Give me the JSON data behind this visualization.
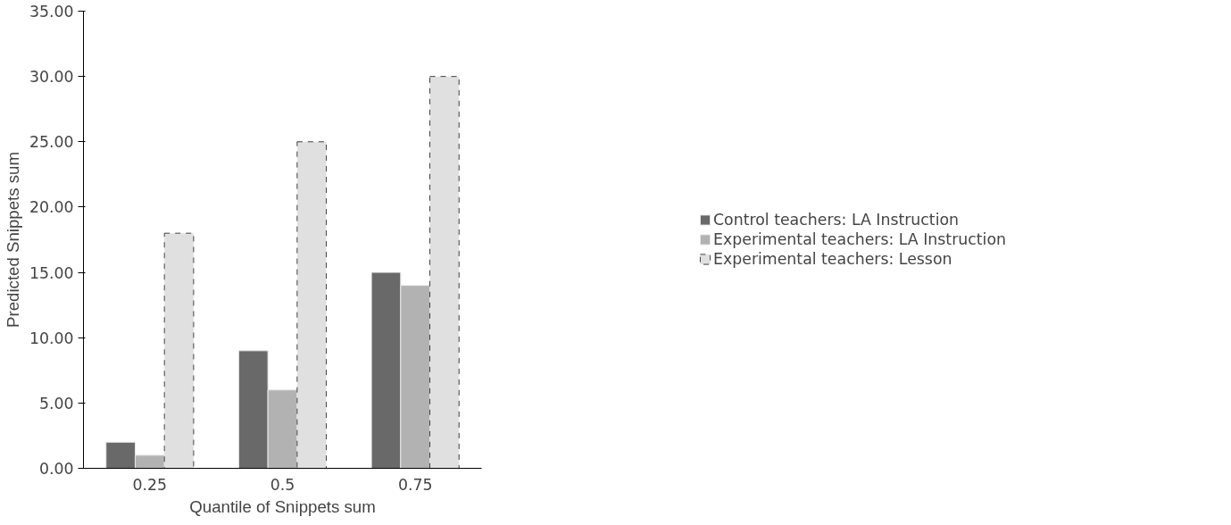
{
  "chart_data": {
    "type": "bar",
    "xlabel": "Quantile of Snippets sum",
    "ylabel": "Predicted Snippets sum",
    "categories": [
      "0.25",
      "0.5",
      "0.75"
    ],
    "series": [
      {
        "name": "Control teachers: LA Instruction",
        "color": "#696969",
        "values": [
          2,
          9,
          15
        ]
      },
      {
        "name": "Experimental teachers: LA Instruction",
        "color": "#b2b2b2",
        "values": [
          1,
          6,
          14
        ]
      },
      {
        "name": "Experimental teachers: Lesson",
        "color": "#e0e0e0",
        "values": [
          18,
          25,
          30
        ],
        "line_style": "dashed"
      }
    ],
    "ylim": [
      0,
      35
    ],
    "yticks": [
      {
        "value": 0,
        "label": "0.00"
      },
      {
        "value": 5,
        "label": "5.00"
      },
      {
        "value": 10,
        "label": "10.00"
      },
      {
        "value": 15,
        "label": "15.00"
      },
      {
        "value": 20,
        "label": "20.00"
      },
      {
        "value": 25,
        "label": "25.00"
      },
      {
        "value": 30,
        "label": "30.00"
      },
      {
        "value": 35,
        "label": "35.00"
      }
    ],
    "grid": false,
    "legend": "right"
  }
}
